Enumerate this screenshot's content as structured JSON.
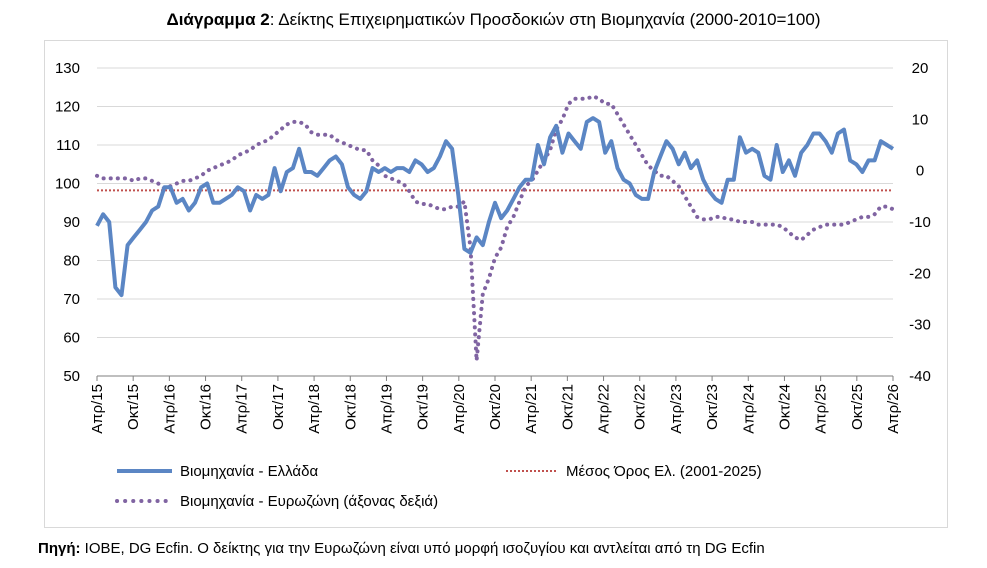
{
  "title": {
    "bold": "Διάγραμμα 2",
    "rest": ": Δείκτης Επιχειρηματικών Προσδοκιών στη Βιομηχανία (2000-2010=100)"
  },
  "source": {
    "bold": "Πηγή:",
    "rest": " IOBE, DG Ecfin. O δείκτης για την Ευρωζώνη είναι υπό μορφή ισοζυγίου και αντλείται από τη DG Ecfin"
  },
  "colors": {
    "greece": "#5b86c4",
    "eurozone": "#8064a2",
    "average": "#c0504d"
  },
  "chart_data": {
    "type": "line",
    "x_tick_labels": [
      "Απρ/15",
      "Οκτ/15",
      "Απρ/16",
      "Οκτ/16",
      "Απρ/17",
      "Οκτ/17",
      "Απρ/18",
      "Οκτ/18",
      "Απρ/19",
      "Οκτ/19",
      "Απρ/20",
      "Οκτ/20",
      "Απρ/21",
      "Οκτ/21",
      "Απρ/22",
      "Οκτ/22",
      "Απρ/23",
      "Οκτ/23",
      "Απρ/24",
      "Οκτ/24",
      "Απρ/25",
      "Οκτ/25",
      "Απρ/26"
    ],
    "x_start": "2015-04",
    "x_end": "2026-04",
    "y_left": {
      "min": 50,
      "max": 130,
      "ticks": [
        50,
        60,
        70,
        80,
        90,
        100,
        110,
        120,
        130
      ]
    },
    "y_right": {
      "min": -40,
      "max": 20,
      "ticks": [
        -40,
        -30,
        -20,
        -10,
        0,
        10,
        20
      ]
    },
    "series": [
      {
        "name": "Βιομηχανία  - Ελλάδα",
        "axis": "left",
        "values": [
          89,
          92,
          90,
          73,
          71,
          84,
          86,
          88,
          90,
          93,
          94,
          99,
          99,
          95,
          96,
          93,
          95,
          99,
          100,
          95,
          95,
          96,
          97,
          99,
          98,
          93,
          97,
          96,
          97,
          104,
          98,
          103,
          104,
          109,
          103,
          103,
          102,
          104,
          106,
          107,
          105,
          99,
          97,
          96,
          98,
          104,
          103,
          104,
          103,
          104,
          104,
          103,
          106,
          105,
          103,
          104,
          107,
          111,
          109,
          97,
          83,
          82,
          86,
          84,
          90,
          95,
          91,
          93,
          96,
          99,
          101,
          101,
          110,
          105,
          112,
          115,
          108,
          113,
          111,
          109,
          116,
          117,
          116,
          108,
          111,
          104,
          101,
          100,
          97,
          96,
          96,
          103,
          107,
          111,
          109,
          105,
          108,
          104,
          106,
          101,
          98,
          96,
          95,
          101,
          101,
          112,
          108,
          109,
          108,
          102,
          101,
          110,
          103,
          106,
          102,
          108,
          110,
          113,
          113,
          111,
          108,
          113,
          114,
          106,
          105,
          103,
          106,
          106,
          111,
          110,
          109
        ]
      },
      {
        "name": "Βιομηχανία - Ευρωζώνη (άξονας δεξιά)",
        "axis": "right",
        "values": [
          -1,
          -1.5,
          -1.5,
          -1.5,
          -1.5,
          -1.5,
          -2,
          -1.5,
          -1.5,
          -2,
          -2.5,
          -3.5,
          -3,
          -2.5,
          -2,
          -2,
          -1.5,
          -1,
          0,
          0.5,
          1,
          1.5,
          2,
          3,
          3.5,
          4,
          5,
          5.5,
          6,
          7,
          8,
          9,
          9.5,
          9.5,
          9,
          7.5,
          7,
          7,
          7,
          6,
          5.5,
          5,
          4.5,
          4,
          4,
          2,
          1,
          -1,
          -1.5,
          -2,
          -2.5,
          -4,
          -6,
          -6.5,
          -6.5,
          -7,
          -7.5,
          -7.5,
          -7,
          -7,
          -6,
          -15,
          -37,
          -24,
          -21,
          -17,
          -15,
          -11,
          -9,
          -6,
          -3,
          -2,
          0,
          2,
          4,
          8,
          10,
          13,
          14,
          14,
          14,
          14.5,
          14,
          13,
          13,
          11,
          9,
          7,
          5,
          3,
          1,
          0,
          -1,
          -1,
          -2,
          -3,
          -5,
          -7,
          -9,
          -9.5,
          -9.5,
          -9,
          -9,
          -9.5,
          -9.5,
          -10,
          -10,
          -10,
          -10.5,
          -10.5,
          -10.5,
          -10.5,
          -11,
          -12,
          -13,
          -13.5,
          -12.5,
          -11.5,
          -11,
          -10.5,
          -10.5,
          -10.5,
          -10.5,
          -10,
          -9.5,
          -9,
          -9,
          -8.5,
          -7,
          -7,
          -7.5
        ]
      },
      {
        "name": "Μέσος Όρος Ελ. (2001-2025)",
        "axis": "left",
        "constant": 98.2
      }
    ],
    "legend": [
      "Βιομηχανία  - Ελλάδα",
      "Μέσος Όρος Ελ. (2001-2025)",
      "Βιομηχανία - Ευρωζώνη (άξονας δεξιά)"
    ],
    "legend_position": "bottom",
    "grid": true
  }
}
